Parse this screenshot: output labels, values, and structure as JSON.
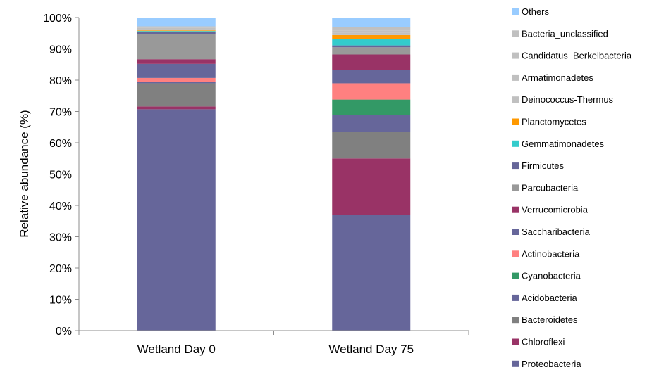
{
  "chart_data": {
    "type": "bar",
    "stacked": true,
    "normalized": true,
    "ylabel": "Relative abundance (%)",
    "xlabel": "",
    "ylim": [
      0,
      100
    ],
    "y_ticks": [
      "0%",
      "10%",
      "20%",
      "30%",
      "40%",
      "50%",
      "60%",
      "70%",
      "80%",
      "90%",
      "100%"
    ],
    "categories": [
      "Wetland Day 0",
      "Wetland Day 75"
    ],
    "legend_position": "right",
    "grid": false,
    "series": [
      {
        "name": "Proteobacteria",
        "color": "#66669a",
        "values": [
          70.7,
          37.0
        ]
      },
      {
        "name": "Chloroflexi",
        "color": "#993366",
        "values": [
          0.9,
          18.0
        ]
      },
      {
        "name": "Bacteroidetes",
        "color": "#808080",
        "values": [
          7.4,
          8.5
        ]
      },
      {
        "name": "Acidobacteria",
        "color": "#66669a",
        "values": [
          0.4,
          5.3
        ]
      },
      {
        "name": "Cyanobacteria",
        "color": "#339966",
        "values": [
          0.1,
          5.0
        ]
      },
      {
        "name": "Actinobacteria",
        "color": "#ff8080",
        "values": [
          1.2,
          5.2
        ]
      },
      {
        "name": "Saccharibacteria",
        "color": "#66669a",
        "values": [
          4.5,
          4.2
        ]
      },
      {
        "name": "Verrucomicrobia",
        "color": "#993366",
        "values": [
          1.5,
          5.0
        ]
      },
      {
        "name": "Parcubacteria",
        "color": "#999999",
        "values": [
          8.0,
          2.3
        ]
      },
      {
        "name": "Firmicutes",
        "color": "#666699",
        "values": [
          0.8,
          0.6
        ]
      },
      {
        "name": "Gemmatimonadetes",
        "color": "#33cccc",
        "values": [
          0.2,
          2.1
        ]
      },
      {
        "name": "Planctomycetes",
        "color": "#ff9900",
        "values": [
          0.2,
          1.2
        ]
      },
      {
        "name": "Deinococcus-Thermus",
        "color": "#c0c0c0",
        "values": [
          0.4,
          0.7
        ]
      },
      {
        "name": "Armatimonadetes",
        "color": "#c0c0c0",
        "values": [
          0.4,
          0.7
        ]
      },
      {
        "name": "Candidatus_Berkelbacteria",
        "color": "#c0c0c0",
        "values": [
          0.3,
          0.6
        ]
      },
      {
        "name": "Bacteria_unclassified",
        "color": "#c0c0c0",
        "values": [
          0.2,
          0.6
        ]
      },
      {
        "name": "Others",
        "color": "#99ccff",
        "values": [
          2.8,
          3.0
        ]
      }
    ]
  }
}
